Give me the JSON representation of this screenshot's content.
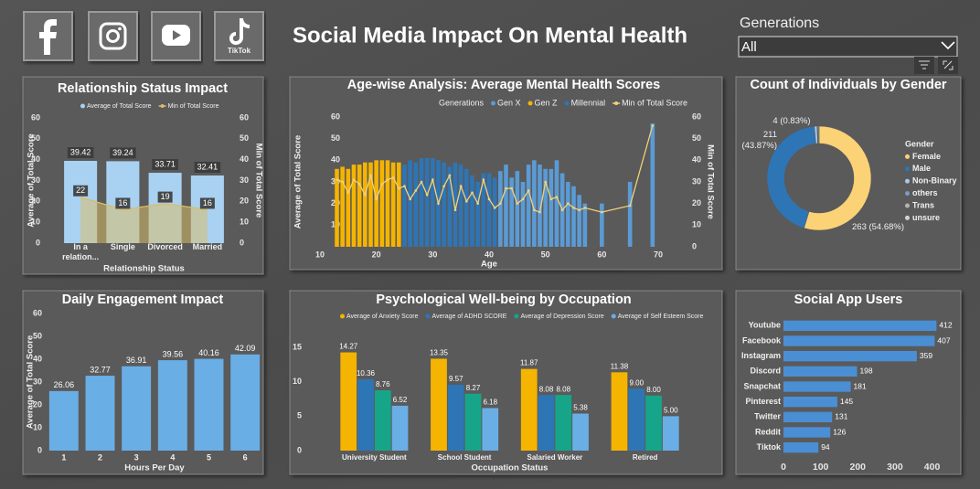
{
  "header": {
    "title": "Social Media Impact On Mental Health",
    "tiktok_label": "TikTok",
    "slicer": {
      "label": "Generations",
      "value": "All"
    }
  },
  "chart_data": [
    {
      "type": "combo",
      "title": "Relationship Status Impact",
      "x_label": "Relationship Status",
      "y_label": "Average of Total Score",
      "y2_label": "Min of Total Score",
      "categories": [
        "In a relation...",
        "Single",
        "Divorced",
        "Married"
      ],
      "series": [
        {
          "name": "Average of Total Score",
          "type": "bar",
          "color": "#a9d1f2",
          "values": [
            39.42,
            39.24,
            33.71,
            32.41
          ]
        },
        {
          "name": "Min of Total Score",
          "type": "area",
          "axis": "y2",
          "color": "#d9bd6a",
          "values": [
            22,
            16,
            19,
            16
          ]
        }
      ],
      "ylim": [
        0,
        60
      ],
      "yticks": [
        0,
        10,
        20,
        30,
        40,
        50,
        60
      ],
      "y2lim": [
        0,
        60
      ],
      "y2ticks": [
        0,
        10,
        20,
        30,
        40,
        50,
        60
      ],
      "grid": false
    },
    {
      "type": "combo",
      "title": "Age-wise Analysis: Average Mental Health Scores",
      "legend_title": "Generations",
      "x_label": "Age",
      "y_label": "Average of Total Score",
      "y2_label": "Min of Total Score",
      "x": [
        13,
        14,
        15,
        16,
        17,
        18,
        19,
        20,
        21,
        22,
        23,
        24,
        25,
        26,
        27,
        28,
        29,
        30,
        31,
        32,
        33,
        34,
        35,
        36,
        37,
        38,
        39,
        40,
        41,
        42,
        43,
        44,
        45,
        46,
        47,
        48,
        49,
        50,
        51,
        52,
        53,
        54,
        55,
        56,
        57,
        60,
        65,
        69
      ],
      "series": [
        {
          "name": "Gen X",
          "type": "bar",
          "color": "#5b9bd5",
          "values": [
            null,
            null,
            null,
            null,
            null,
            null,
            null,
            null,
            null,
            null,
            null,
            null,
            null,
            null,
            null,
            null,
            null,
            null,
            null,
            null,
            null,
            null,
            null,
            null,
            null,
            null,
            null,
            null,
            null,
            35,
            38,
            32,
            35,
            30,
            38,
            40,
            38,
            36,
            36,
            40,
            34,
            30,
            28,
            24,
            20,
            20,
            30,
            57
          ]
        },
        {
          "name": "Gen Z",
          "type": "bar",
          "color": "#f5b400",
          "values": [
            36,
            37,
            36,
            38,
            38,
            39,
            39,
            40,
            40,
            40,
            39,
            39,
            null,
            null,
            null,
            null,
            null,
            null,
            null,
            null,
            null,
            null,
            null,
            null,
            null,
            null,
            null,
            null,
            null,
            null,
            null,
            null,
            null,
            null,
            null,
            null,
            null,
            null,
            null,
            null,
            null,
            null,
            null,
            null,
            null,
            null,
            null,
            null
          ]
        },
        {
          "name": "Millennial",
          "type": "bar",
          "color": "#2e75b6",
          "values": [
            null,
            null,
            null,
            null,
            null,
            null,
            null,
            null,
            null,
            null,
            null,
            null,
            38,
            40,
            39,
            41,
            41,
            41,
            40,
            39,
            37,
            39,
            38,
            36,
            33,
            30,
            34,
            34,
            32,
            null,
            null,
            null,
            null,
            null,
            null,
            null,
            null,
            null,
            null,
            null,
            null,
            null,
            null,
            null,
            null,
            null,
            null,
            null
          ]
        },
        {
          "name": "Min of Total Score",
          "type": "line",
          "axis": "y2",
          "color": "#f2d27a",
          "values": [
            31,
            30,
            25,
            31,
            29,
            24,
            33,
            22,
            29,
            31,
            32,
            27,
            28,
            22,
            26,
            30,
            24,
            31,
            20,
            28,
            33,
            17,
            28,
            21,
            25,
            20,
            31,
            22,
            18,
            20,
            27,
            27,
            20,
            22,
            26,
            17,
            16,
            30,
            22,
            23,
            17,
            20,
            18,
            17,
            18,
            16,
            19,
            56
          ]
        }
      ],
      "xlim": [
        10,
        70
      ],
      "xticks": [
        10,
        20,
        30,
        40,
        50,
        60,
        70
      ],
      "ylim": [
        0,
        60
      ],
      "yticks": [
        10,
        20,
        30,
        40,
        50,
        60
      ],
      "y2lim": [
        0,
        60
      ],
      "y2ticks": [
        0,
        10,
        20,
        30,
        40,
        50,
        60
      ],
      "grid": false
    },
    {
      "type": "donut",
      "title": "Count of Individuals by Gender",
      "legend_title": "Gender",
      "categories": [
        "Female",
        "Male",
        "Non-Binary",
        "others",
        "Trans",
        "unsure"
      ],
      "values": [
        263,
        211,
        4,
        1,
        1,
        1
      ],
      "value_labels": [
        "263 (54.68%)",
        "211 (43.87%)",
        "4 (0.83%)",
        null,
        null,
        null
      ],
      "colors": [
        "#fcd276",
        "#2e75b6",
        "#a8c9e8",
        "#7a9cc4",
        "#b4b4b4",
        "#d4d4d4"
      ]
    },
    {
      "type": "bar",
      "title": "Daily Engagement Impact",
      "x_label": "Hours Per Day",
      "y_label": "Average of Total Score",
      "categories": [
        "1",
        "2",
        "3",
        "4",
        "5",
        "6"
      ],
      "values": [
        26.06,
        32.77,
        36.91,
        39.56,
        40.16,
        42.09
      ],
      "color": "#6aaee6",
      "ylim": [
        0,
        60
      ],
      "yticks": [
        0,
        10,
        20,
        30,
        40,
        50,
        60
      ],
      "grid": false
    },
    {
      "type": "bar",
      "title": "Psychological Well-being by Occupation",
      "x_label": "Occupation Status",
      "categories": [
        "University Student",
        "School Student",
        "Salaried Worker",
        "Retired"
      ],
      "series": [
        {
          "name": "Average of Anxiety Score",
          "color": "#f5b400",
          "values": [
            14.27,
            13.35,
            11.87,
            11.38
          ],
          "value_labels": [
            "14.27",
            "13.35",
            "11.87",
            "11.38"
          ]
        },
        {
          "name": "Average of ADHD SCORE",
          "color": "#2e75b6",
          "values": [
            10.36,
            9.57,
            8.08,
            9.0
          ],
          "value_labels": [
            "10.36",
            "9.57",
            "8.08",
            "9.00"
          ]
        },
        {
          "name": "Average of Depression Score",
          "color": "#17a589",
          "values": [
            8.76,
            8.27,
            8.08,
            8.0
          ],
          "value_labels": [
            "8.76",
            "8.27",
            "8.08",
            "8.00"
          ]
        },
        {
          "name": "Average of Self Esteem Score",
          "color": "#6aaee6",
          "values": [
            6.52,
            6.18,
            5.38,
            5.0
          ],
          "value_labels": [
            "6.52",
            "6.18",
            "5.38",
            "5.00"
          ]
        }
      ],
      "ylim": [
        0,
        17
      ],
      "yticks": [
        0,
        5,
        10,
        15
      ],
      "grid": false
    },
    {
      "type": "bar",
      "orientation": "horizontal",
      "title": "Social App Users",
      "categories": [
        "Youtube",
        "Facebook",
        "Instagram",
        "Discord",
        "Snapchat",
        "Pinterest",
        "Twitter",
        "Reddit",
        "Tiktok"
      ],
      "values": [
        412,
        407,
        359,
        198,
        181,
        145,
        131,
        126,
        94
      ],
      "color": "#4a8fd4",
      "xlim": [
        0,
        470
      ],
      "xticks": [
        0,
        100,
        200,
        300,
        400
      ],
      "grid": false
    }
  ]
}
